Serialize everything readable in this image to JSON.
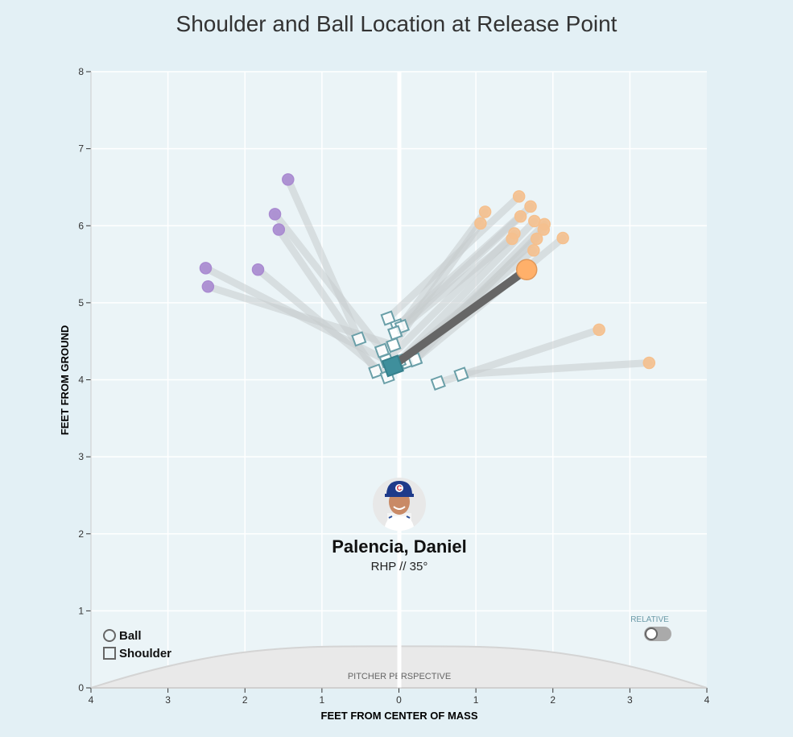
{
  "chart_data": {
    "type": "scatter",
    "title": "Shoulder and Ball Location at Release Point",
    "xlabel": "FEET FROM CENTER OF MASS",
    "ylabel": "FEET FROM GROUND",
    "xlim": [
      -4,
      4
    ],
    "ylim": [
      0,
      8
    ],
    "x_ticks": [
      -4,
      -3,
      -2,
      -1,
      0,
      1,
      2,
      3,
      4
    ],
    "x_tick_labels": [
      "4",
      "3",
      "2",
      "1",
      "0",
      "1",
      "2",
      "3",
      "4"
    ],
    "y_ticks": [
      0,
      1,
      2,
      3,
      4,
      5,
      6,
      7,
      8
    ],
    "y_tick_labels": [
      "0",
      "1",
      "2",
      "3",
      "4",
      "5",
      "6",
      "7",
      "8"
    ],
    "grid": true,
    "annotation": "PITCHER PERSPECTIVE",
    "colors": {
      "ball_left": "#a98ad0",
      "ball_right": "#f5c08e",
      "ball_highlight": "#ffb06a",
      "shoulder": "#6a9fa8",
      "shoulder_highlight": "#3f8f9c",
      "line": "#c6cccd",
      "line_highlight": "#666666"
    },
    "pitches": [
      {
        "ball": [
          -1.44,
          6.6
        ],
        "shoulder": [
          -0.52,
          4.53
        ],
        "group": "left"
      },
      {
        "ball": [
          -1.61,
          6.15
        ],
        "shoulder": [
          -0.22,
          4.38
        ],
        "group": "left"
      },
      {
        "ball": [
          -1.56,
          5.95
        ],
        "shoulder": [
          -0.3,
          4.11
        ],
        "group": "left"
      },
      {
        "ball": [
          -2.51,
          5.45
        ],
        "shoulder": [
          -0.16,
          4.25
        ],
        "group": "left"
      },
      {
        "ball": [
          -1.83,
          5.43
        ],
        "shoulder": [
          -0.15,
          4.04
        ],
        "group": "left"
      },
      {
        "ball": [
          -2.48,
          5.21
        ],
        "shoulder": [
          -0.07,
          4.45
        ],
        "group": "left"
      },
      {
        "ball": [
          1.56,
          6.38
        ],
        "shoulder": [
          -0.14,
          4.8
        ],
        "group": "right"
      },
      {
        "ball": [
          1.71,
          6.25
        ],
        "shoulder": [
          -0.02,
          4.7
        ],
        "group": "right"
      },
      {
        "ball": [
          1.12,
          6.18
        ],
        "shoulder": [
          -0.05,
          4.61
        ],
        "group": "right"
      },
      {
        "ball": [
          1.58,
          6.12
        ],
        "shoulder": [
          0.04,
          4.69
        ],
        "group": "right"
      },
      {
        "ball": [
          1.06,
          6.03
        ],
        "shoulder": [
          -0.07,
          4.45
        ],
        "group": "right"
      },
      {
        "ball": [
          1.76,
          6.06
        ],
        "shoulder": [
          0.0,
          4.24
        ],
        "group": "right"
      },
      {
        "ball": [
          1.89,
          6.02
        ],
        "shoulder": [
          0.1,
          4.23
        ],
        "group": "right"
      },
      {
        "ball": [
          1.5,
          5.9
        ],
        "shoulder": [
          -0.16,
          4.25
        ],
        "group": "right"
      },
      {
        "ball": [
          1.88,
          5.95
        ],
        "shoulder": [
          0.21,
          4.26
        ],
        "group": "right"
      },
      {
        "ball": [
          1.79,
          5.83
        ],
        "shoulder": [
          0.1,
          4.23
        ],
        "group": "right"
      },
      {
        "ball": [
          1.47,
          5.83
        ],
        "shoulder": [
          -0.05,
          4.61
        ],
        "group": "right"
      },
      {
        "ball": [
          2.13,
          5.84
        ],
        "shoulder": [
          0.21,
          4.26
        ],
        "group": "right"
      },
      {
        "ball": [
          1.75,
          5.68
        ],
        "shoulder": [
          0.0,
          4.24
        ],
        "group": "right"
      },
      {
        "ball": [
          2.6,
          4.65
        ],
        "shoulder": [
          0.51,
          3.96
        ],
        "group": "right"
      },
      {
        "ball": [
          3.25,
          4.22
        ],
        "shoulder": [
          0.81,
          4.07
        ],
        "group": "right"
      }
    ],
    "highlight": {
      "ball": [
        1.66,
        5.43
      ],
      "shoulder": [
        -0.08,
        4.18
      ]
    }
  },
  "player": {
    "name": "Palencia, Daniel",
    "subtitle": "RHP // 35°"
  },
  "legend": {
    "ball_label": "Ball",
    "shoulder_label": "Shoulder"
  },
  "relative_toggle": {
    "label": "RELATIVE",
    "on": false
  }
}
